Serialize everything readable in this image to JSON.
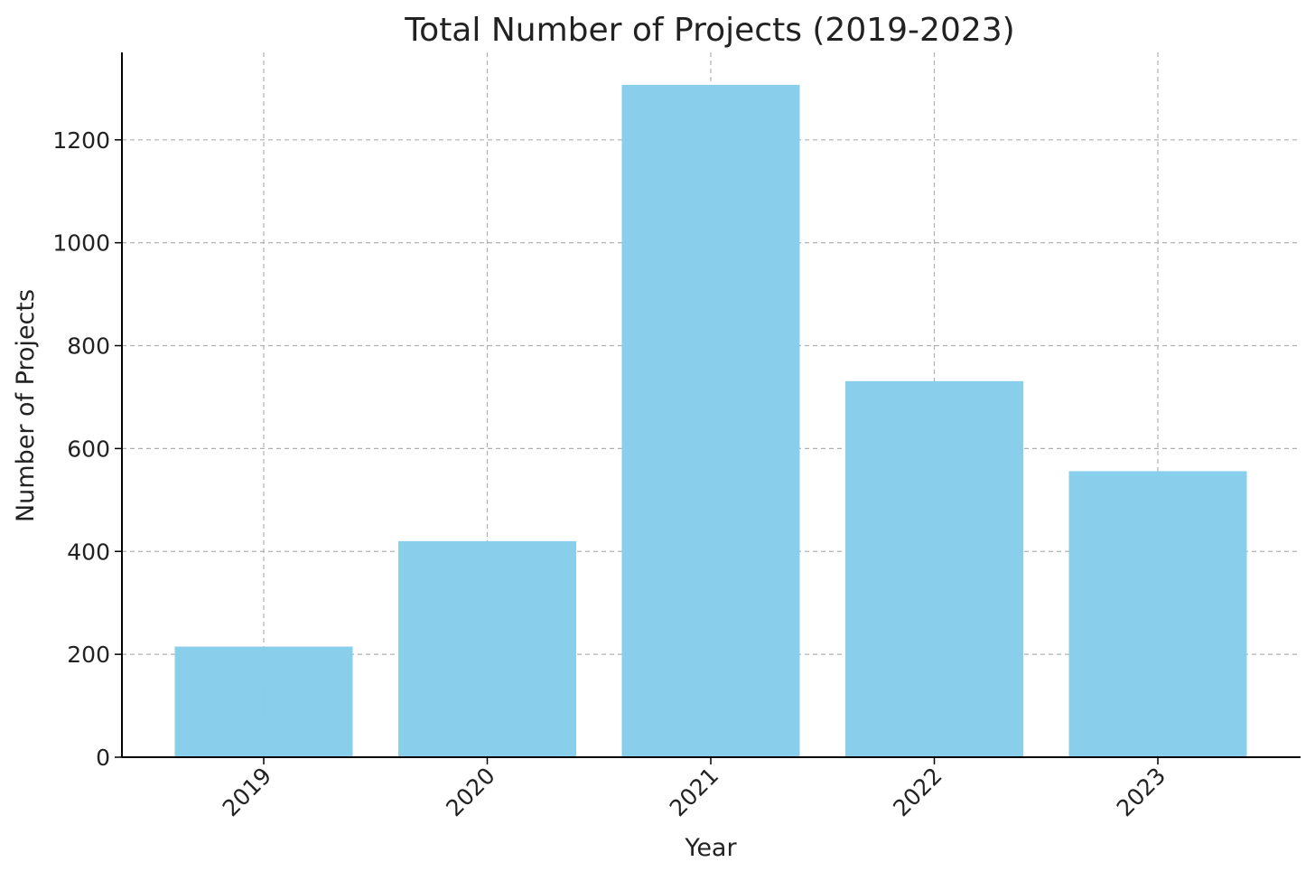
{
  "chart_data": {
    "type": "bar",
    "title": "Total Number of Projects (2019-2023)",
    "xlabel": "Year",
    "ylabel": "Number of Projects",
    "categories": [
      "2019",
      "2020",
      "2021",
      "2022",
      "2023"
    ],
    "values": [
      215,
      420,
      1307,
      731,
      556
    ],
    "ylim": [
      0,
      1370
    ],
    "yticks": [
      0,
      200,
      400,
      600,
      800,
      1000,
      1200
    ],
    "ytick_labels": [
      "0",
      "200",
      "400",
      "600",
      "800",
      "1000",
      "1200"
    ],
    "grid": true,
    "legend": "none",
    "colors": {
      "bar": "#87ceeb",
      "grid": "#b0b0b0",
      "axis": "#000000",
      "text": "#222222"
    }
  }
}
